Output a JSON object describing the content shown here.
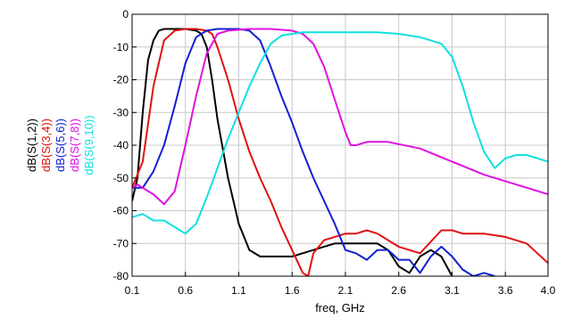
{
  "chart_data": {
    "type": "line",
    "title": "",
    "xlabel": "freq, GHz",
    "ylabel": "",
    "xlim": [
      0.1,
      4.0
    ],
    "ylim": [
      -80,
      0
    ],
    "grid": true,
    "legend": "vertical labels on left, stacked",
    "x_ticks": [
      0.1,
      0.6,
      1.1,
      1.6,
      2.1,
      2.6,
      3.1,
      3.6,
      4.0
    ],
    "x_tick_labels": [
      "0.1",
      "0.6",
      "1.1",
      "1.6",
      "2.1",
      "2.6",
      "3.1",
      "3.6",
      "4.0"
    ],
    "y_ticks": [
      0,
      -10,
      -20,
      -30,
      -40,
      -50,
      -60,
      -70,
      -80
    ],
    "y_tick_labels": [
      "0",
      "-10",
      "-20",
      "-30",
      "-40",
      "-50",
      "-60",
      "-70",
      "-80"
    ],
    "series": [
      {
        "name": "dB(S(1,2))",
        "color": "#000000",
        "x": [
          0.1,
          0.15,
          0.2,
          0.25,
          0.3,
          0.35,
          0.4,
          0.5,
          0.6,
          0.7,
          0.75,
          0.8,
          0.85,
          0.9,
          1.0,
          1.1,
          1.2,
          1.3,
          1.4,
          1.6,
          1.8,
          2.0,
          2.2,
          2.4,
          2.5,
          2.6,
          2.7,
          2.8,
          2.9,
          3.0,
          3.1
        ],
        "y": [
          -57,
          -50,
          -30,
          -14,
          -8,
          -5,
          -4.5,
          -4.5,
          -4.5,
          -5,
          -6,
          -10,
          -20,
          -32,
          -50,
          -64,
          -72,
          -74,
          -74,
          -74,
          -72,
          -70,
          -70,
          -70,
          -72,
          -77,
          -79,
          -74,
          -72,
          -74,
          -80
        ]
      },
      {
        "name": "dB(S(3,4))",
        "color": "#e01010",
        "x": [
          0.1,
          0.2,
          0.3,
          0.4,
          0.5,
          0.6,
          0.7,
          0.8,
          0.85,
          0.9,
          1.0,
          1.1,
          1.2,
          1.3,
          1.4,
          1.5,
          1.6,
          1.7,
          1.75,
          1.8,
          1.9,
          2.0,
          2.1,
          2.2,
          2.3,
          2.4,
          2.5,
          2.6,
          2.8,
          3.0,
          3.1,
          3.2,
          3.4,
          3.6,
          3.8,
          4.0
        ],
        "y": [
          -53,
          -45,
          -22,
          -8,
          -5,
          -4.5,
          -4.5,
          -5,
          -6,
          -10,
          -20,
          -32,
          -42,
          -50,
          -57,
          -65,
          -72,
          -79,
          -80,
          -73,
          -69,
          -68,
          -67,
          -67,
          -66,
          -67,
          -69,
          -71,
          -73,
          -66,
          -66,
          -67,
          -67,
          -68,
          -70,
          -76
        ]
      },
      {
        "name": "dB(S(5,6))",
        "color": "#1020d0",
        "x": [
          0.1,
          0.2,
          0.3,
          0.4,
          0.5,
          0.6,
          0.7,
          0.8,
          0.9,
          1.0,
          1.1,
          1.2,
          1.3,
          1.4,
          1.5,
          1.6,
          1.7,
          1.8,
          1.9,
          2.0,
          2.1,
          2.2,
          2.3,
          2.4,
          2.5,
          2.6,
          2.7,
          2.8,
          2.9,
          3.0,
          3.1,
          3.2,
          3.3,
          3.4,
          3.5
        ],
        "y": [
          -53,
          -53,
          -48,
          -40,
          -28,
          -15,
          -7,
          -5,
          -4.5,
          -4.5,
          -4.5,
          -5,
          -8,
          -16,
          -25,
          -33,
          -42,
          -50,
          -57,
          -64,
          -72,
          -73,
          -75,
          -72,
          -72,
          -75,
          -75,
          -79,
          -74,
          -71,
          -74,
          -78,
          -80,
          -79,
          -80
        ]
      },
      {
        "name": "dB(S(7,8))",
        "color": "#e010e0",
        "x": [
          0.1,
          0.15,
          0.2,
          0.3,
          0.4,
          0.5,
          0.6,
          0.7,
          0.8,
          0.9,
          1.0,
          1.2,
          1.4,
          1.6,
          1.7,
          1.8,
          1.9,
          2.0,
          2.1,
          2.15,
          2.2,
          2.3,
          2.5,
          2.8,
          3.1,
          3.4,
          3.7,
          4.0
        ],
        "y": [
          -53,
          -52,
          -53,
          -55,
          -58,
          -54,
          -40,
          -25,
          -12,
          -6,
          -5,
          -4.5,
          -4.5,
          -5,
          -6,
          -9,
          -16,
          -26,
          -36,
          -40,
          -40,
          -39,
          -39,
          -41,
          -45,
          -49,
          -52,
          -55
        ]
      },
      {
        "name": "dB(S(9,10))",
        "color": "#10e0e0",
        "x": [
          0.1,
          0.2,
          0.3,
          0.4,
          0.5,
          0.6,
          0.7,
          0.8,
          0.9,
          1.0,
          1.1,
          1.2,
          1.3,
          1.4,
          1.5,
          1.6,
          1.7,
          1.8,
          2.0,
          2.2,
          2.4,
          2.6,
          2.8,
          3.0,
          3.1,
          3.2,
          3.3,
          3.4,
          3.5,
          3.6,
          3.7,
          3.8,
          4.0
        ],
        "y": [
          -62,
          -61,
          -63,
          -63,
          -65,
          -67,
          -64,
          -56,
          -47,
          -38,
          -30,
          -22,
          -15,
          -9,
          -6.5,
          -6,
          -5.5,
          -5.5,
          -5.5,
          -5.5,
          -5.5,
          -6,
          -7,
          -9,
          -13,
          -22,
          -33,
          -42,
          -47,
          -44,
          -43,
          -43,
          -45
        ]
      }
    ]
  }
}
